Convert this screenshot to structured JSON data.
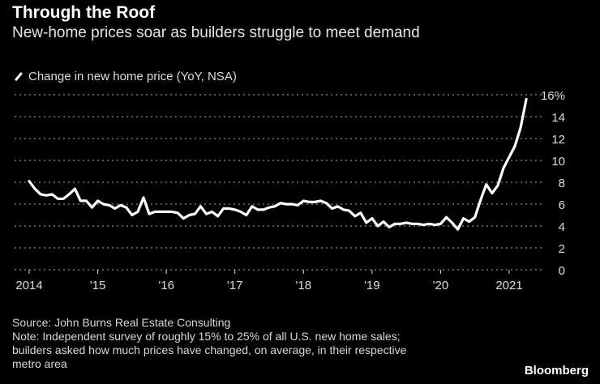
{
  "chart_data": {
    "type": "line",
    "title": "Through the Roof",
    "subtitle": "New-home prices soar as builders struggle to meet demand",
    "series": [
      {
        "name": "Change in new home price (YoY, NSA)",
        "color": "#ffffff",
        "start": "2014-01",
        "frequency": "monthly",
        "values": [
          8.1,
          7.4,
          6.9,
          6.8,
          6.9,
          6.5,
          6.5,
          6.9,
          7.4,
          6.3,
          6.3,
          5.7,
          6.3,
          6.0,
          5.9,
          5.6,
          5.9,
          5.7,
          5.0,
          5.3,
          6.6,
          5.1,
          5.3,
          5.3,
          5.3,
          5.3,
          5.2,
          4.7,
          5.0,
          5.1,
          5.8,
          5.1,
          5.3,
          4.9,
          5.6,
          5.6,
          5.5,
          5.3,
          5.0,
          5.8,
          5.5,
          5.5,
          5.7,
          5.8,
          6.1,
          6.0,
          6.0,
          5.9,
          6.3,
          6.2,
          6.2,
          6.3,
          6.1,
          5.6,
          5.8,
          5.5,
          5.4,
          4.9,
          5.2,
          4.3,
          4.7,
          4.0,
          4.4,
          3.9,
          4.2,
          4.2,
          4.3,
          4.2,
          4.2,
          4.1,
          4.2,
          4.1,
          4.2,
          4.8,
          4.3,
          3.7,
          4.7,
          4.4,
          4.8,
          6.4,
          7.8,
          7.0,
          7.7,
          9.3,
          10.3,
          11.3,
          13.0,
          15.6
        ]
      }
    ],
    "x_tick_labels": [
      "2014",
      "'15",
      "'16",
      "'17",
      "'18",
      "'19",
      "'20",
      "2021"
    ],
    "y_tick_labels": [
      "0",
      "2",
      "4",
      "6",
      "8",
      "10",
      "12",
      "14",
      "16%"
    ],
    "y_ticks": [
      0,
      2,
      4,
      6,
      8,
      10,
      12,
      14,
      16
    ],
    "ylim": [
      0,
      16
    ],
    "xlim": [
      "2014-01",
      "2021-04"
    ],
    "grid": "horizontal dotted",
    "y_axis_side": "right",
    "legend_placement": "top-left"
  },
  "footer": {
    "source": "Source: John Burns Real Estate Consulting",
    "note_lines": [
      "Note: Independent survey of roughly 15% to 25% of all U.S. new home sales;",
      "builders asked how much prices have changed, on average, in their respective",
      "metro area"
    ],
    "brand": "Bloomberg"
  }
}
